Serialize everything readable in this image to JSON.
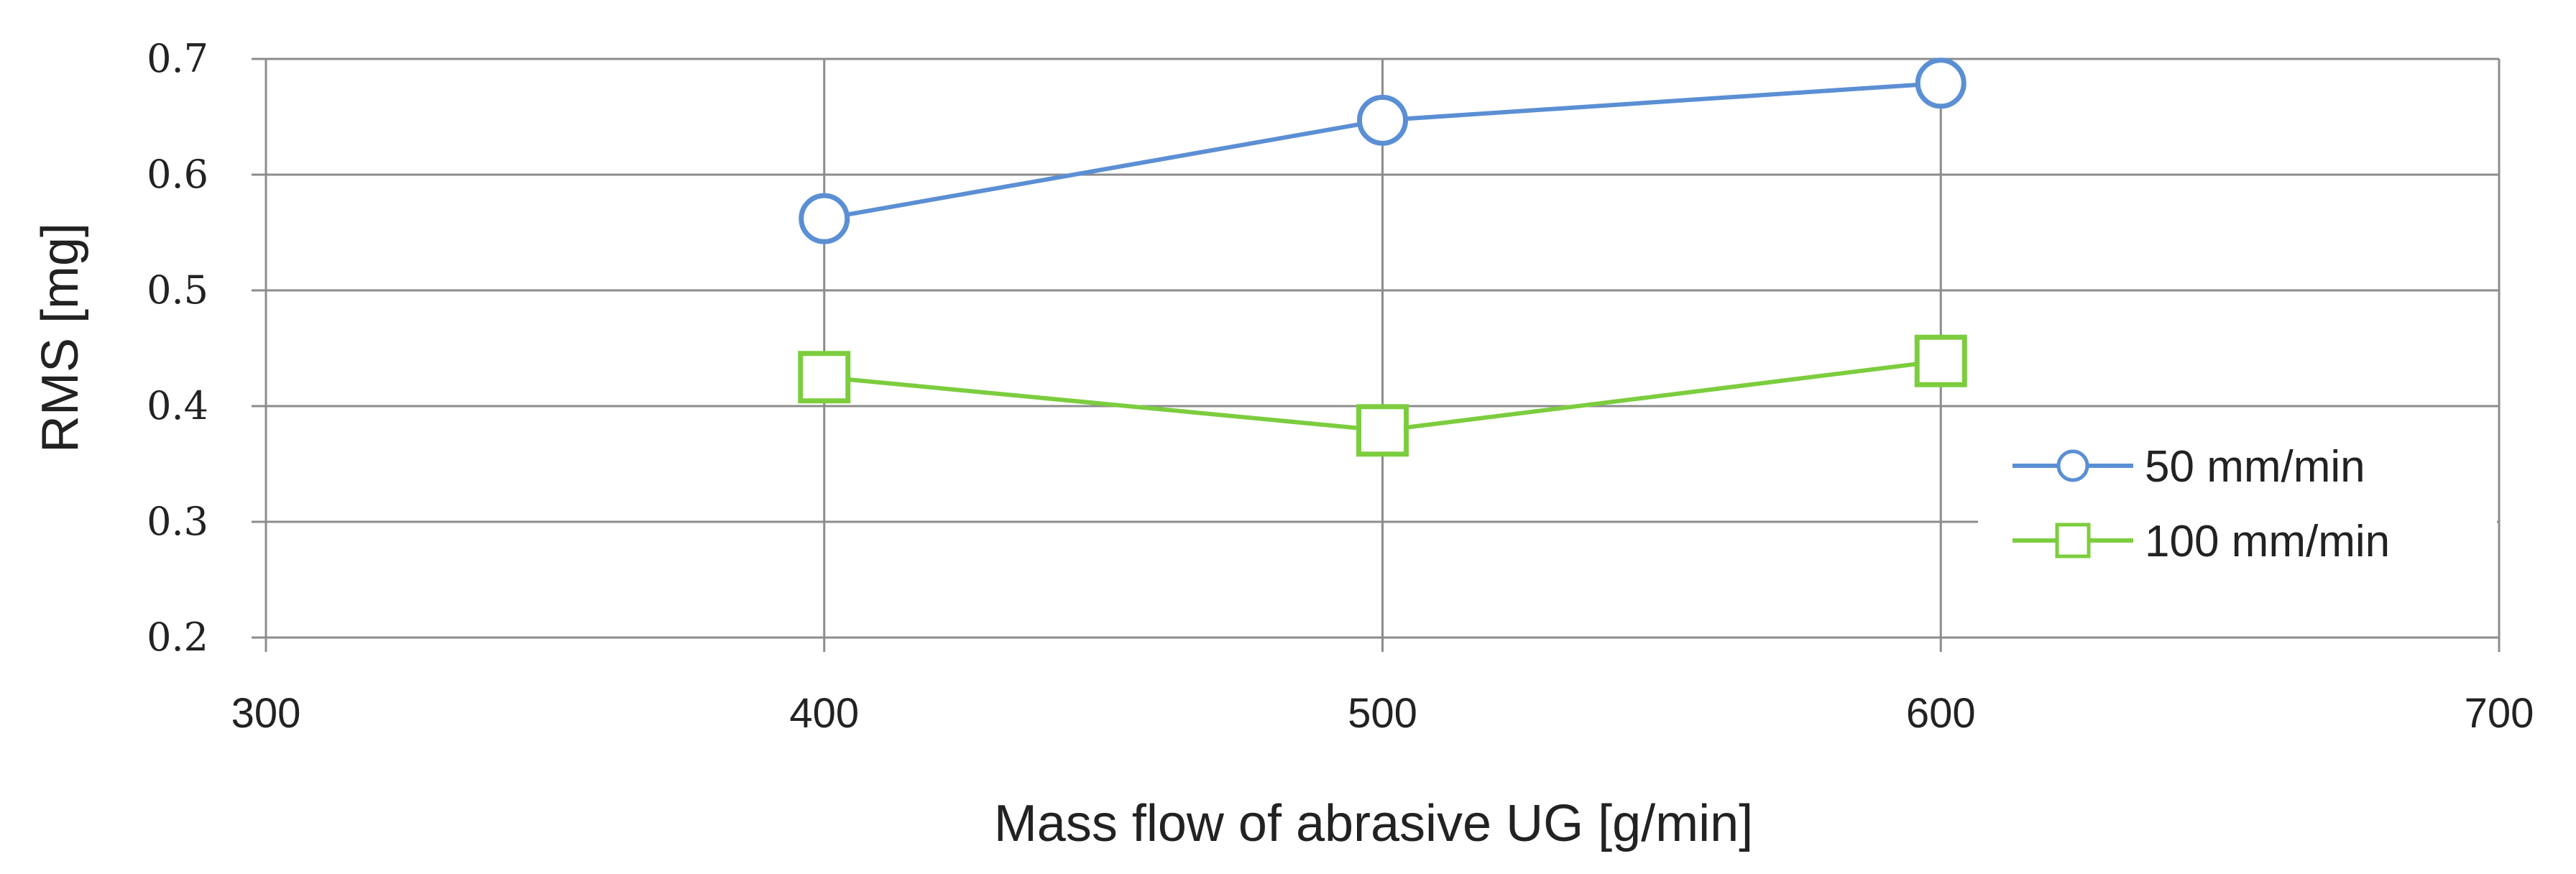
{
  "chart_data": {
    "type": "line",
    "title": "",
    "xlabel": "Mass flow of abrasive UG [g/min]",
    "ylabel": "RMS [mg]",
    "xlim": [
      300,
      700
    ],
    "ylim": [
      0.2,
      0.7
    ],
    "xticks": [
      300,
      400,
      500,
      600,
      700
    ],
    "yticks": [
      0.2,
      0.3,
      0.4,
      0.5,
      0.6,
      0.7
    ],
    "xtick_labels": [
      "300",
      "400",
      "500",
      "600",
      "700"
    ],
    "ytick_labels": [
      "0.2",
      "0.3",
      "0.4",
      "0.5",
      "0.6",
      "0.7"
    ],
    "grid": true,
    "legend_position": "right",
    "series": [
      {
        "name": "50 mm/min",
        "marker": "circle",
        "color": "#5b8fd4",
        "x": [
          400,
          500,
          600
        ],
        "y": [
          0.562,
          0.647,
          0.679
        ]
      },
      {
        "name": "100 mm/min",
        "marker": "square",
        "color": "#7ccd3e",
        "x": [
          400,
          500,
          600
        ],
        "y": [
          0.425,
          0.379,
          0.439
        ]
      }
    ]
  }
}
